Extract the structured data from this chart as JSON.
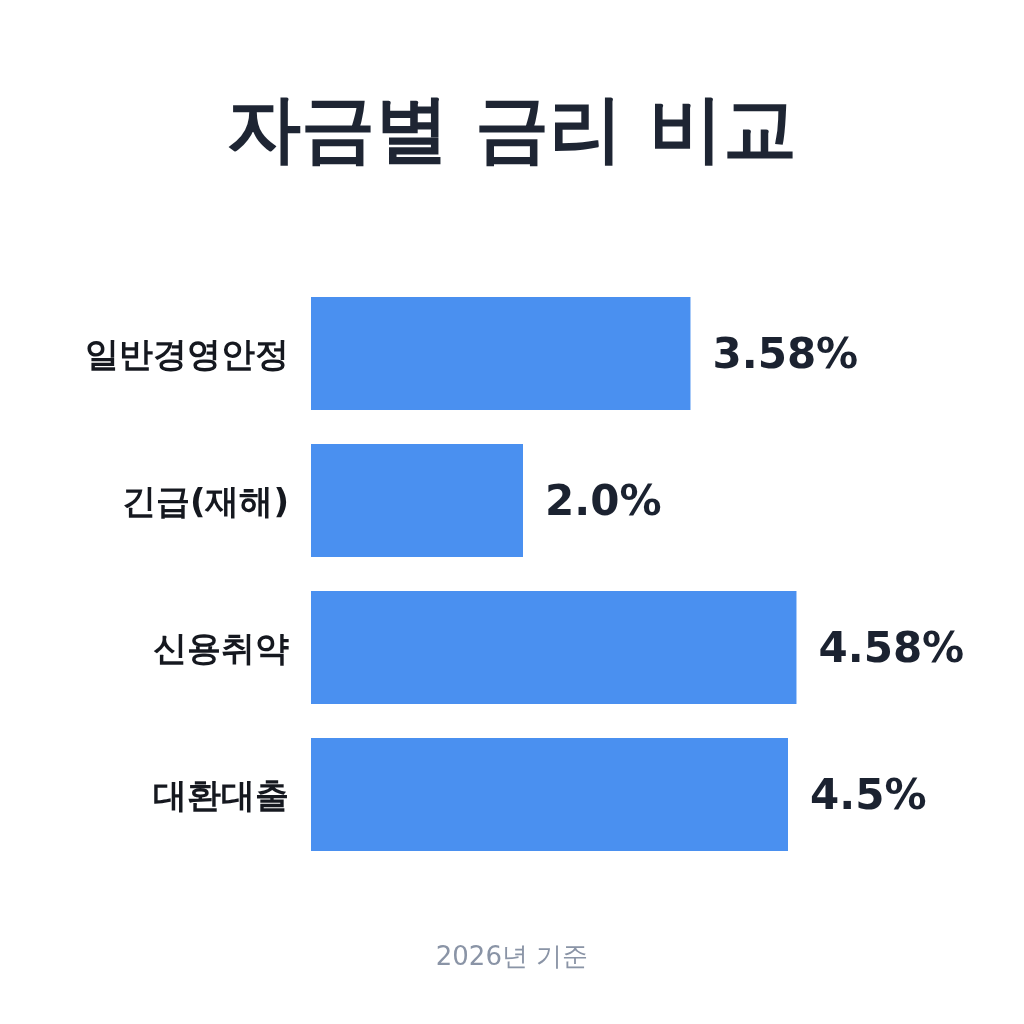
{
  "chart_data": {
    "type": "bar",
    "orientation": "horizontal",
    "title": "자금별 금리 비교",
    "categories": [
      "일반경영안정",
      "긴급(재해)",
      "신용취약",
      "대환대출"
    ],
    "values": [
      3.58,
      2.0,
      4.58,
      4.5
    ],
    "value_labels": [
      "3.58%",
      "2.0%",
      "4.58%",
      "4.5%"
    ],
    "color": "#4a90f0",
    "annotations": [
      "2026년 기준"
    ]
  }
}
